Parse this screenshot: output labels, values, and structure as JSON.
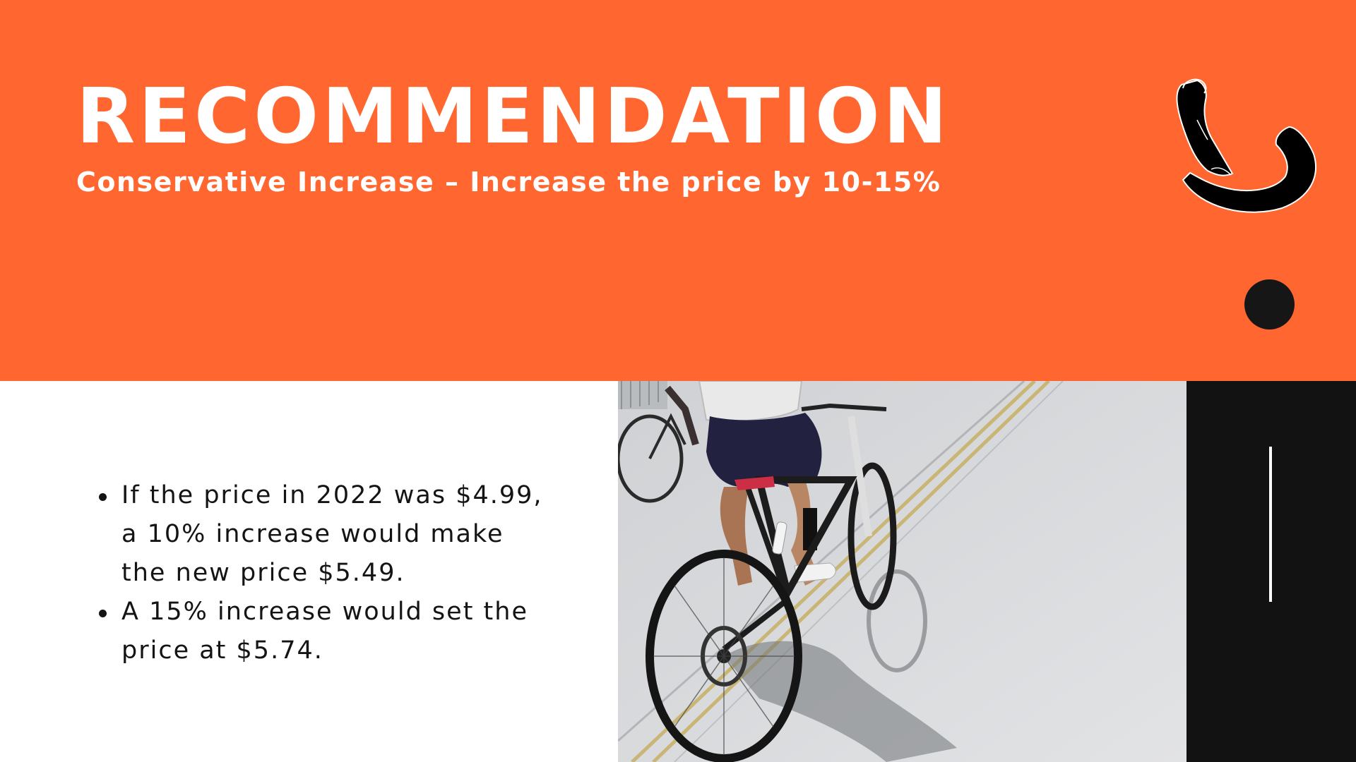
{
  "slide": {
    "title": "RECOMMENDATION",
    "subtitle": "Conservative Increase – Increase the price by 10-15%",
    "bullets": [
      "If the price in 2022 was $4.99, a 10% increase would make the new price $5.49.",
      "A 15% increase would set the price at $5.74."
    ]
  },
  "colors": {
    "accent": "#ff6630",
    "dark": "#121212",
    "text": "#141414",
    "background": "#ffffff"
  },
  "graphics": {
    "logo": "handlebar-hook-icon",
    "photo": "cyclists-on-path-photo"
  }
}
